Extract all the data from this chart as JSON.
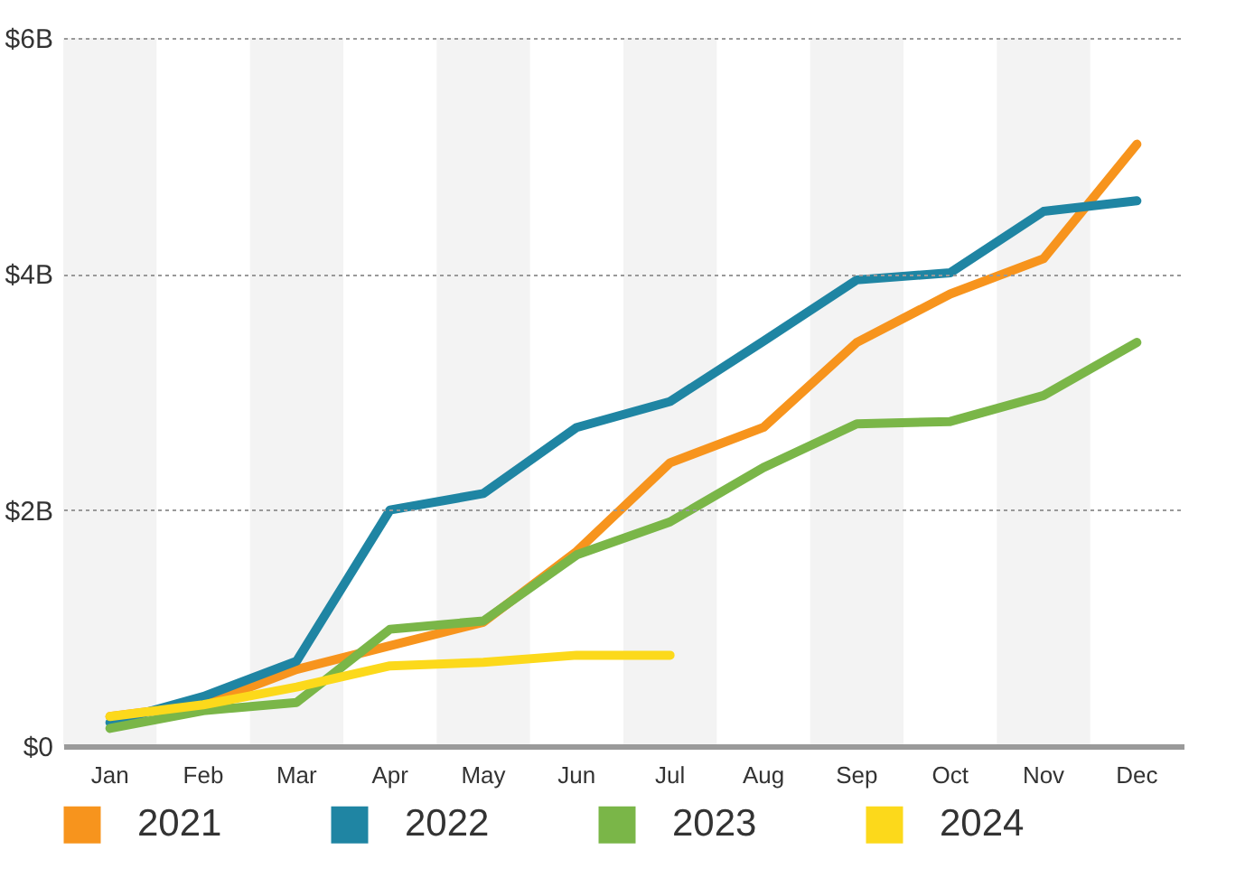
{
  "chart_data": {
    "type": "line",
    "categories": [
      "Jan",
      "Feb",
      "Mar",
      "Apr",
      "May",
      "Jun",
      "Jul",
      "Aug",
      "Sep",
      "Oct",
      "Nov",
      "Dec"
    ],
    "series": [
      {
        "name": "2021",
        "color": "#f7941d",
        "values": [
          0.25,
          0.35,
          0.65,
          0.85,
          1.05,
          1.65,
          2.4,
          2.7,
          3.42,
          3.83,
          4.13,
          5.1
        ]
      },
      {
        "name": "2022",
        "color": "#1f85a3",
        "values": [
          0.2,
          0.42,
          0.72,
          2.0,
          2.14,
          2.7,
          2.92,
          3.43,
          3.95,
          4.01,
          4.53,
          4.62
        ]
      },
      {
        "name": "2023",
        "color": "#7ab648",
        "values": [
          0.15,
          0.3,
          0.37,
          0.99,
          1.06,
          1.62,
          1.9,
          2.36,
          2.73,
          2.75,
          2.97,
          3.42
        ]
      },
      {
        "name": "2024",
        "color": "#fcd91b",
        "values": [
          0.25,
          0.35,
          0.5,
          0.68,
          0.71,
          0.77,
          0.77,
          null,
          null,
          null,
          null,
          null
        ]
      }
    ],
    "ylim": [
      0,
      6
    ],
    "yticks": [
      {
        "value": 0,
        "label": "$0"
      },
      {
        "value": 2,
        "label": "$2B"
      },
      {
        "value": 4,
        "label": "$4B"
      },
      {
        "value": 6,
        "label": "$6B"
      }
    ],
    "grid": "y",
    "legend": "bottom",
    "line_style": "solid",
    "marker": "none",
    "bands": [
      {
        "axis": "x",
        "from": "Jan",
        "to": "Jan",
        "color": "#f3f3f3"
      },
      {
        "axis": "x",
        "from": "Mar",
        "to": "Mar",
        "color": "#f3f3f3"
      },
      {
        "axis": "x",
        "from": "May",
        "to": "May",
        "color": "#f3f3f3"
      },
      {
        "axis": "x",
        "from": "Jul",
        "to": "Jul",
        "color": "#f3f3f3"
      },
      {
        "axis": "x",
        "from": "Sep",
        "to": "Sep",
        "color": "#f3f3f3"
      },
      {
        "axis": "x",
        "from": "Nov",
        "to": "Nov",
        "color": "#f3f3f3"
      }
    ]
  }
}
